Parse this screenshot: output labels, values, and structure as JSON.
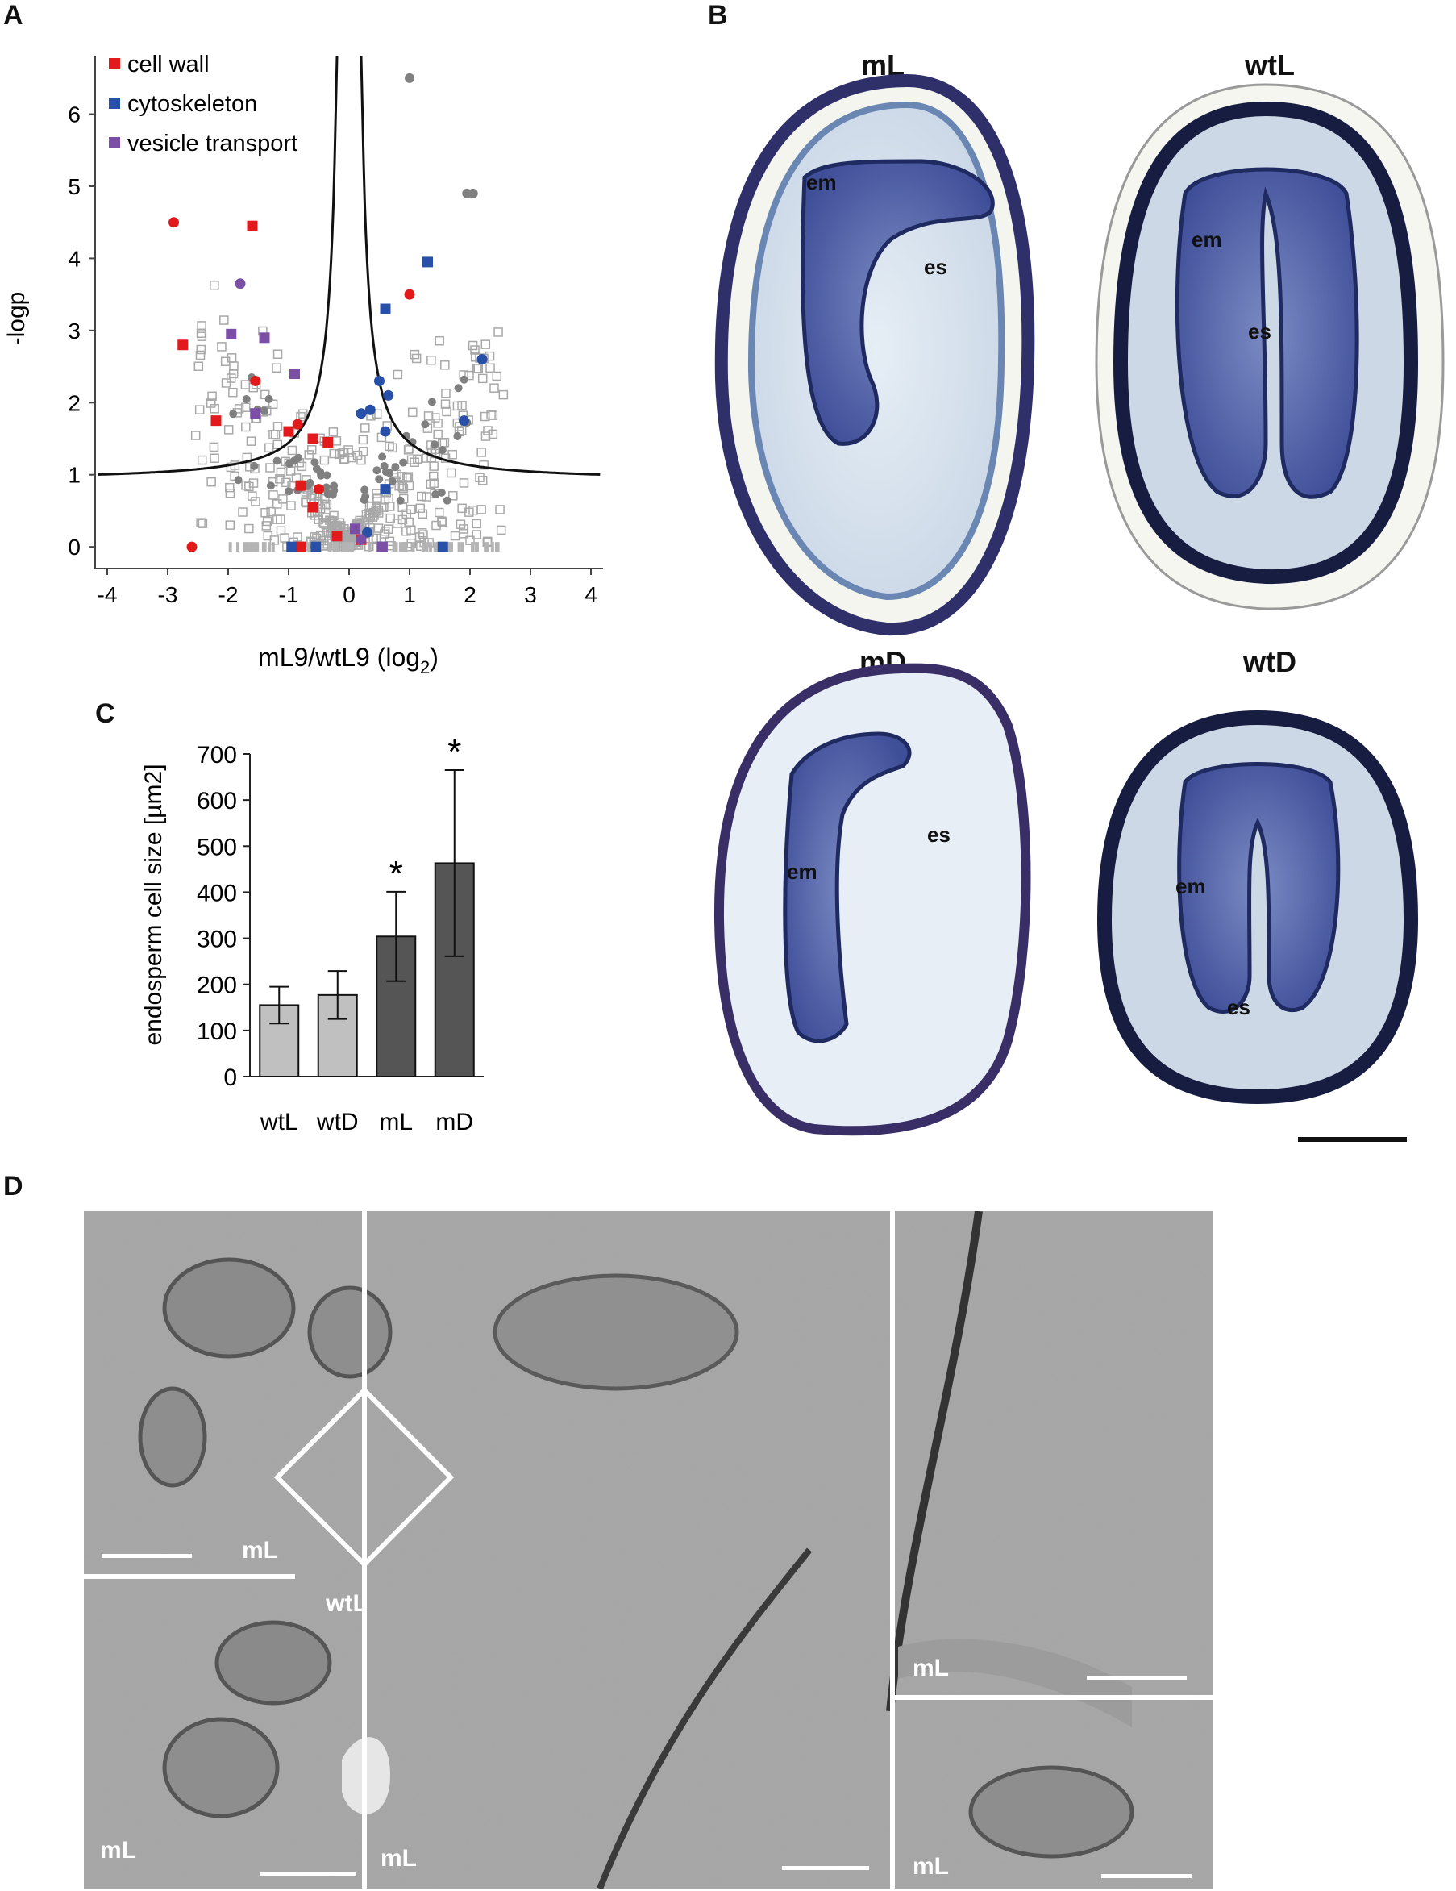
{
  "panels": {
    "a": "A",
    "b": "B",
    "c": "C",
    "d": "D"
  },
  "volcano": {
    "legend": [
      {
        "label": "cell wall",
        "color": "#e31a1c"
      },
      {
        "label": "cytoskeleton",
        "color": "#2850a8"
      },
      {
        "label": "vesicle transport",
        "color": "#7b4fa6"
      }
    ],
    "ylabel": "-logp",
    "xlabel_main": "mL9/wtL9 (log",
    "xlabel_sub": "2",
    "xlabel_end": ")",
    "xticks": [
      "-4",
      "-3",
      "-2",
      "-1",
      "0",
      "1",
      "2",
      "3",
      "4"
    ],
    "yticks": [
      "0",
      "1",
      "2",
      "3",
      "4",
      "5",
      "6"
    ]
  },
  "sections": {
    "mL": {
      "title": "mL",
      "em": "em",
      "es": "es"
    },
    "wtL": {
      "title": "wtL",
      "em": "em",
      "es": "es"
    },
    "mD": {
      "title": "mD",
      "em": "em",
      "es": "es"
    },
    "wtD": {
      "title": "wtD",
      "em": "em",
      "es": "es"
    }
  },
  "chart_data": [
    {
      "type": "scatter",
      "xlabel": "mL9/wtL9 (log2)",
      "ylabel": "-logp",
      "xlim": [
        -4.2,
        4.2
      ],
      "ylim": [
        -0.3,
        6.8
      ],
      "series": [
        {
          "name": "cell wall",
          "color": "#e31a1c",
          "x": [
            -2.9,
            -1.6,
            -2.75,
            -1.55,
            -2.2,
            -1.0,
            -0.85,
            -0.6,
            -0.8,
            -0.5,
            -0.35,
            -0.6,
            -2.6,
            -0.8,
            -0.2,
            1.0,
            0.2
          ],
          "y": [
            4.5,
            4.45,
            2.8,
            2.3,
            1.75,
            1.6,
            1.7,
            1.5,
            0.85,
            0.8,
            1.45,
            0.55,
            0.0,
            0.0,
            0.15,
            3.5,
            0.1
          ]
        },
        {
          "name": "cytoskeleton",
          "color": "#2850a8",
          "x": [
            1.3,
            0.6,
            0.5,
            0.65,
            0.35,
            0.2,
            0.6,
            2.2,
            1.9,
            0.6,
            -0.95,
            -0.55,
            0.55,
            1.55,
            0.3
          ],
          "y": [
            3.95,
            3.3,
            2.3,
            2.1,
            1.9,
            1.85,
            1.6,
            2.6,
            1.75,
            0.8,
            0.0,
            0.0,
            0.0,
            0.0,
            0.2
          ],
          "marker": [
            "s",
            "s",
            "c",
            "c",
            "c",
            "c",
            "c",
            "c",
            "c",
            "s",
            "s",
            "s",
            "s",
            "s",
            "c"
          ]
        },
        {
          "name": "vesicle transport",
          "color": "#7b4fa6",
          "x": [
            -1.8,
            -1.95,
            -1.4,
            -0.9,
            -1.55,
            0.1,
            0.2,
            0.55
          ],
          "y": [
            3.65,
            2.95,
            2.9,
            2.4,
            1.85,
            0.25,
            0.1,
            0.0
          ],
          "marker": [
            "c",
            "s",
            "s",
            "s",
            "s",
            "s",
            "c",
            "s"
          ]
        }
      ]
    },
    {
      "type": "bar",
      "categories": [
        "wtL",
        "wtD",
        "mL",
        "mD"
      ],
      "values": [
        155,
        177,
        304,
        463
      ],
      "errors": [
        40,
        52,
        97,
        202
      ],
      "significant": [
        false,
        false,
        true,
        true
      ],
      "annotation": "*",
      "bar_colors": [
        "#c0c0c0",
        "#c0c0c0",
        "#555555",
        "#555555"
      ],
      "ylabel": "endosperm cell size [µm2]",
      "yticks": [
        "0",
        "100",
        "200",
        "300",
        "400",
        "500",
        "600",
        "700"
      ],
      "ylim": [
        0,
        700
      ]
    }
  ],
  "micrographs": {
    "labels": [
      "mL",
      "wtL",
      "mL",
      "mL",
      "mL",
      "mL"
    ]
  }
}
